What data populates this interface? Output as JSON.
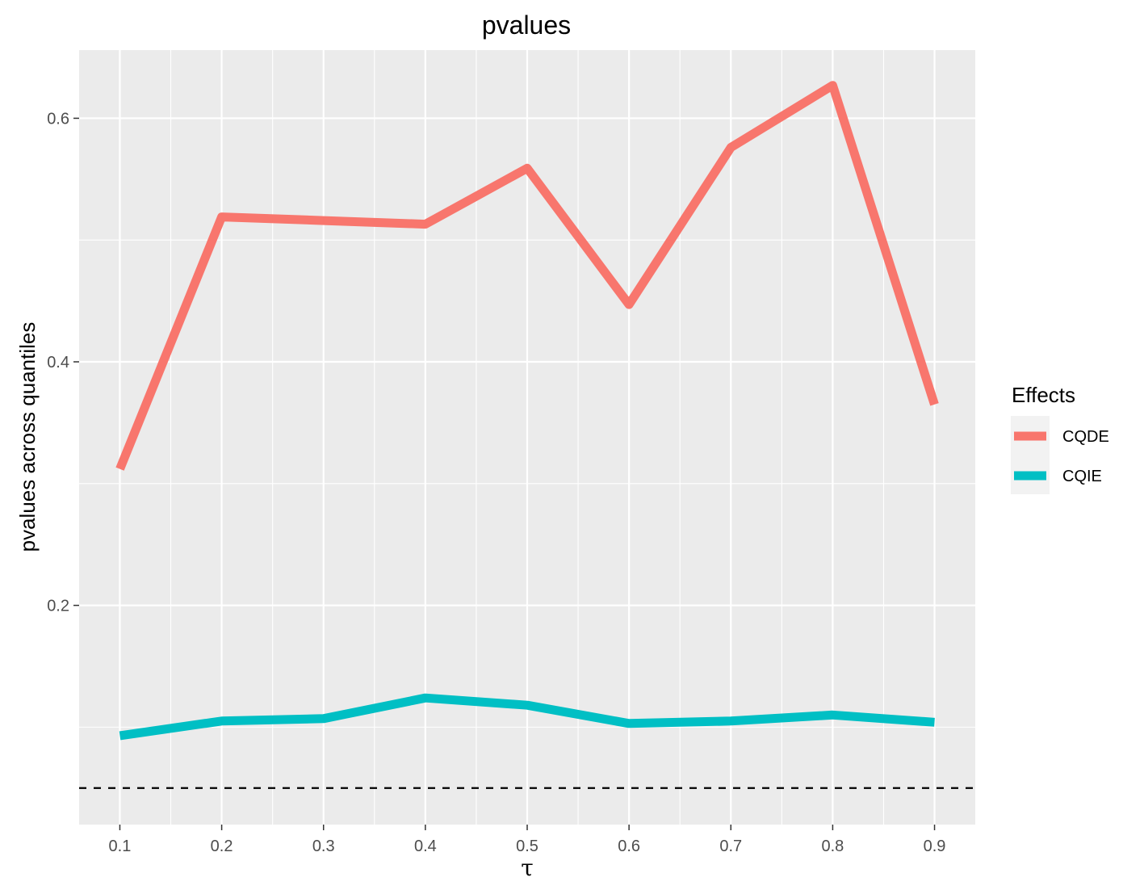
{
  "chart_data": {
    "type": "line",
    "title": "pvalues",
    "xlabel": "τ",
    "ylabel": "pvalues across quantiles",
    "x": [
      0.1,
      0.2,
      0.3,
      0.4,
      0.5,
      0.6,
      0.7,
      0.8,
      0.9
    ],
    "x_tick_labels": [
      "0.1",
      "0.2",
      "0.3",
      "0.4",
      "0.5",
      "0.6",
      "0.7",
      "0.8",
      "0.9"
    ],
    "y_ticks": [
      0.2,
      0.4,
      0.6
    ],
    "y_tick_labels": [
      "0.2",
      "0.4",
      "0.6"
    ],
    "xlim": [
      0.06,
      0.94
    ],
    "ylim": [
      0.02,
      0.656
    ],
    "grid": true,
    "reference_line": {
      "y": 0.05,
      "style": "dashed",
      "color": "#000000"
    },
    "legend": {
      "title": "Effects",
      "placement": "right"
    },
    "series": [
      {
        "name": "CQDE",
        "color": "#F8766D",
        "values": [
          0.312,
          0.519,
          0.516,
          0.513,
          0.559,
          0.447,
          0.576,
          0.627,
          0.365
        ]
      },
      {
        "name": "CQIE",
        "color": "#00BFC4",
        "values": [
          0.093,
          0.105,
          0.107,
          0.124,
          0.118,
          0.103,
          0.105,
          0.11,
          0.104
        ]
      }
    ]
  },
  "colors": {
    "panel_background": "#EBEBEB",
    "grid_lines": "#FFFFFF",
    "tick_text": "#4D4D4D"
  }
}
